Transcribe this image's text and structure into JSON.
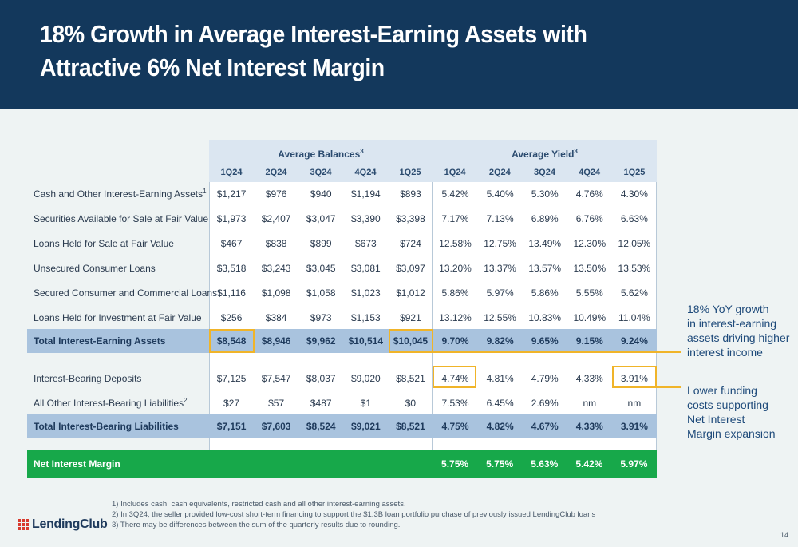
{
  "title": {
    "line1": "18% Growth in Average Interest-Earning Assets with",
    "line2": "Attractive 6% Net Interest Margin"
  },
  "table": {
    "balances_header": "Average Balances",
    "balances_sup": "3",
    "yield_header": "Average Yield",
    "yield_sup": "3",
    "quarters": [
      "1Q24",
      "2Q24",
      "3Q24",
      "4Q24",
      "1Q25"
    ],
    "rows": [
      {
        "label": "Cash and Other Interest-Earning Assets",
        "sup": "1",
        "balances": [
          "$1,217",
          "$976",
          "$940",
          "$1,194",
          "$893"
        ],
        "yields": [
          "5.42%",
          "5.40%",
          "5.30%",
          "4.76%",
          "4.30%"
        ]
      },
      {
        "label": "Securities Available for Sale at Fair Value",
        "sup": "",
        "balances": [
          "$1,973",
          "$2,407",
          "$3,047",
          "$3,390",
          "$3,398"
        ],
        "yields": [
          "7.17%",
          "7.13%",
          "6.89%",
          "6.76%",
          "6.63%"
        ]
      },
      {
        "label": "Loans Held for Sale at Fair Value",
        "sup": "",
        "balances": [
          "$467",
          "$838",
          "$899",
          "$673",
          "$724"
        ],
        "yields": [
          "12.58%",
          "12.75%",
          "13.49%",
          "12.30%",
          "12.05%"
        ]
      },
      {
        "label": "Unsecured Consumer Loans",
        "sup": "",
        "balances": [
          "$3,518",
          "$3,243",
          "$3,045",
          "$3,081",
          "$3,097"
        ],
        "yields": [
          "13.20%",
          "13.37%",
          "13.57%",
          "13.50%",
          "13.53%"
        ]
      },
      {
        "label": "Secured Consumer and Commercial Loans",
        "sup": "",
        "balances": [
          "$1,116",
          "$1,098",
          "$1,058",
          "$1,023",
          "$1,012"
        ],
        "yields": [
          "5.86%",
          "5.97%",
          "5.86%",
          "5.55%",
          "5.62%"
        ]
      },
      {
        "label": "Loans Held for Investment at Fair Value",
        "sup": "",
        "balances": [
          "$256",
          "$384",
          "$973",
          "$1,153",
          "$921"
        ],
        "yields": [
          "13.12%",
          "12.55%",
          "10.83%",
          "10.49%",
          "11.04%"
        ]
      },
      {
        "label": "Total Interest-Earning Assets",
        "sup": "",
        "total": true,
        "balances": [
          "$8,548",
          "$8,946",
          "$9,962",
          "$10,514",
          "$10,045"
        ],
        "yields": [
          "9.70%",
          "9.82%",
          "9.65%",
          "9.15%",
          "9.24%"
        ]
      },
      {
        "label": "Interest-Bearing Deposits",
        "sup": "",
        "balances": [
          "$7,125",
          "$7,547",
          "$8,037",
          "$9,020",
          "$8,521"
        ],
        "yields": [
          "4.74%",
          "4.81%",
          "4.79%",
          "4.33%",
          "3.91%"
        ]
      },
      {
        "label": "All Other Interest-Bearing Liabilities",
        "sup": "2",
        "balances": [
          "$27",
          "$57",
          "$487",
          "$1",
          "$0"
        ],
        "yields": [
          "7.53%",
          "6.45%",
          "2.69%",
          "nm",
          "nm"
        ]
      },
      {
        "label": "Total Interest-Bearing Liabilities",
        "sup": "",
        "total": true,
        "balances": [
          "$7,151",
          "$7,603",
          "$8,524",
          "$9,021",
          "$8,521"
        ],
        "yields": [
          "4.75%",
          "4.82%",
          "4.67%",
          "4.33%",
          "3.91%"
        ]
      }
    ],
    "nim": {
      "label": "Net Interest Margin",
      "yields": [
        "5.75%",
        "5.75%",
        "5.63%",
        "5.42%",
        "5.97%"
      ]
    }
  },
  "notes": {
    "growth": [
      "18% YoY growth",
      "in interest-earning",
      "assets driving higher",
      "interest income"
    ],
    "funding": [
      "Lower funding",
      "costs supporting",
      "Net Interest",
      "Margin expansion"
    ]
  },
  "footnotes": [
    "1)  Includes cash, cash equivalents, restricted cash and all other interest-earning assets.",
    "2)  In 3Q24, the seller provided low-cost short-term financing to support the $1.3B loan portfolio purchase of previously issued LendingClub loans",
    "3)  There may be differences between the sum of the quarterly results due to rounding."
  ],
  "logo_text": "LendingClub",
  "page_number": "14",
  "colors": {
    "header_bg": "#13385c",
    "total_row": "#a9c3de",
    "nim_row": "#17a84a",
    "highlight": "#f0b429",
    "logo_mark": "#d83a2e"
  }
}
